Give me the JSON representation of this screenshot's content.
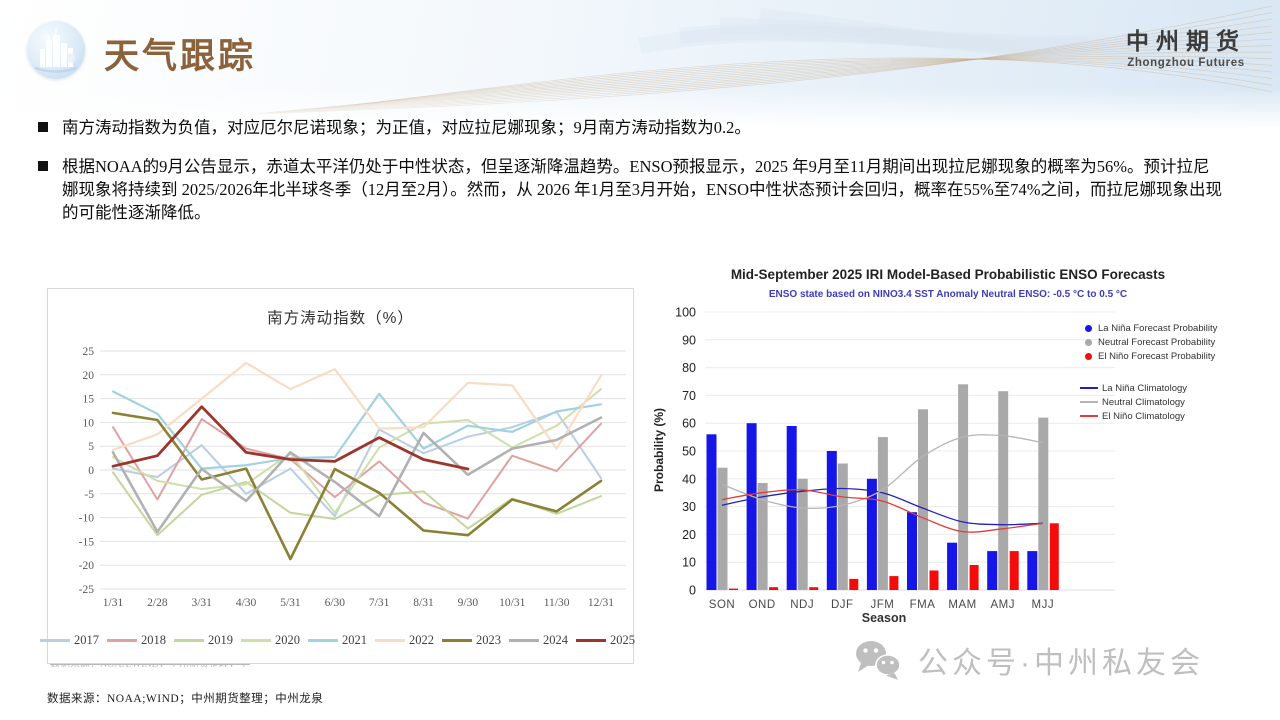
{
  "header": {
    "title": "天气跟踪",
    "brand_cn": "中州期货",
    "brand_en": "Zhongzhou Futures",
    "accent_color": "#8b6239"
  },
  "bullets": [
    "南方涛动指数为负值，对应厄尔尼诺现象；为正值，对应拉尼娜现象；9月南方涛动指数为0.2。",
    "根据NOAA的9月公告显示，赤道太平洋仍处于中性状态，但呈逐渐降温趋势。ENSO预报显示，2025 年9月至11月期间出现拉尼娜现象的概率为56%。预计拉尼娜现象将持续到 2025/2026年北半球冬季（12月至2月）。然而，从 2026 年1月至3月开始，ENSO中性状态预计会回归，概率在55%至74%之间，而拉尼娜现象出现的可能性逐渐降低。"
  ],
  "chart_data": [
    {
      "type": "line",
      "title": "南方涛动指数（%）",
      "x_labels": [
        "1/31",
        "2/28",
        "3/31",
        "4/30",
        "5/31",
        "6/30",
        "7/31",
        "8/31",
        "9/30",
        "10/31",
        "11/30",
        "12/31"
      ],
      "ylim": [
        -25,
        25
      ],
      "yticks": [
        25,
        20,
        15,
        10,
        5,
        0,
        -5,
        -10,
        -15,
        -20,
        -25
      ],
      "grid": true,
      "legend_position": "bottom",
      "series": [
        {
          "name": "2017",
          "color": "#b9cde4",
          "width": 2,
          "values": [
            0.3,
            -1.5,
            5.2,
            -5,
            0.3,
            -9.7,
            8.5,
            3.5,
            7,
            9,
            12.2,
            -1.7
          ]
        },
        {
          "name": "2018",
          "color": "#e0a1a1",
          "width": 2,
          "values": [
            9,
            -6.2,
            10.7,
            4.5,
            2.3,
            -5.7,
            1.8,
            -6.8,
            -10.2,
            3,
            -0.2,
            9.7
          ]
        },
        {
          "name": "2019",
          "color": "#c3d69b",
          "width": 2,
          "values": [
            -0.5,
            -13.7,
            -5.2,
            -2.5,
            -9,
            -10.3,
            -5.3,
            -4.5,
            -12.3,
            -6,
            -9.2,
            -5.5
          ]
        },
        {
          "name": "2020",
          "color": "#cde0a9",
          "width": 2,
          "values": [
            2.7,
            -2.3,
            -4,
            -3,
            3.5,
            -9,
            4.7,
            9.7,
            10.5,
            4.7,
            9.3,
            17
          ]
        },
        {
          "name": "2021",
          "color": "#a2d1e2",
          "width": 2.2,
          "values": [
            16.5,
            11.8,
            0.3,
            1,
            2.5,
            2.7,
            16,
            4.5,
            9.3,
            8,
            12.3,
            13.8
          ]
        },
        {
          "name": "2022",
          "color": "#f9dcc4",
          "width": 2.2,
          "values": [
            4.2,
            7.5,
            15,
            22.5,
            17,
            21.2,
            8.7,
            9,
            18.3,
            17.8,
            4.5,
            19.8
          ]
        },
        {
          "name": "2023",
          "color": "#8a8036",
          "width": 2.6,
          "values": [
            12,
            10.5,
            -2,
            0.3,
            -18.7,
            0.2,
            -4.8,
            -12.7,
            -13.7,
            -6.2,
            -8.7,
            -2.3
          ]
        },
        {
          "name": "2024",
          "color": "#b1b1b1",
          "width": 2.6,
          "values": [
            3.7,
            -13,
            0.2,
            -6.5,
            3.7,
            -2.5,
            -9.7,
            7.8,
            -1,
            4.5,
            6.3,
            11
          ]
        },
        {
          "name": "2025",
          "color": "#9c352b",
          "width": 2.8,
          "values": [
            0.8,
            3,
            13.3,
            3.7,
            2.2,
            1.8,
            6.8,
            2.2,
            0.2,
            null,
            null,
            null
          ]
        }
      ]
    },
    {
      "type": "bar",
      "title": "Mid-September 2025 IRI Model-Based Probabilistic ENSO Forecasts",
      "subtitle": "ENSO state based on NINO3.4 SST Anomaly Neutral ENSO: -0.5 °C to 0.5 °C",
      "xlabel": "Season",
      "ylabel": "Probability (%)",
      "categories": [
        "SON",
        "OND",
        "NDJ",
        "DJF",
        "JFM",
        "FMA",
        "MAM",
        "AMJ",
        "MJJ"
      ],
      "ylim": [
        0,
        100
      ],
      "yticks": [
        100,
        90,
        80,
        70,
        60,
        50,
        40,
        30,
        20,
        10,
        0
      ],
      "grid": true,
      "legend_position": "right",
      "bar_series": [
        {
          "name": "La Niña Forecast Probability",
          "color": "#1616e8",
          "values": [
            56,
            60,
            59,
            50,
            40,
            28,
            17,
            14,
            14
          ]
        },
        {
          "name": "Neutral Forecast Probability",
          "color": "#a9a9a9",
          "values": [
            44,
            38.5,
            40,
            45.5,
            55,
            65,
            74,
            71.5,
            62
          ]
        },
        {
          "name": "El Niño Forecast Probability",
          "color": "#f40b0b",
          "values": [
            0.5,
            1,
            1,
            4,
            5,
            7,
            9,
            14,
            24
          ]
        }
      ],
      "line_series": [
        {
          "name": "La Niña Climatology",
          "color": "#2222bb",
          "values": [
            30.5,
            33.5,
            35.5,
            36.5,
            35,
            29.5,
            24.5,
            23.5,
            24
          ]
        },
        {
          "name": "Neutral Climatology",
          "color": "#b5b5b5",
          "values": [
            38,
            32.5,
            29.5,
            30.5,
            36,
            48,
            55,
            55.5,
            53
          ]
        },
        {
          "name": "El Niño Climatology",
          "color": "#e23b3b",
          "values": [
            32.5,
            35,
            36,
            33.5,
            32,
            26,
            21,
            22,
            24
          ]
        }
      ]
    }
  ],
  "footer": {
    "source": "数据来源：NOAA;WIND；中州期货整理；中州龙泉"
  },
  "watermark": {
    "text": "公众号·中州私友会",
    "icon": "wechat-icon"
  }
}
